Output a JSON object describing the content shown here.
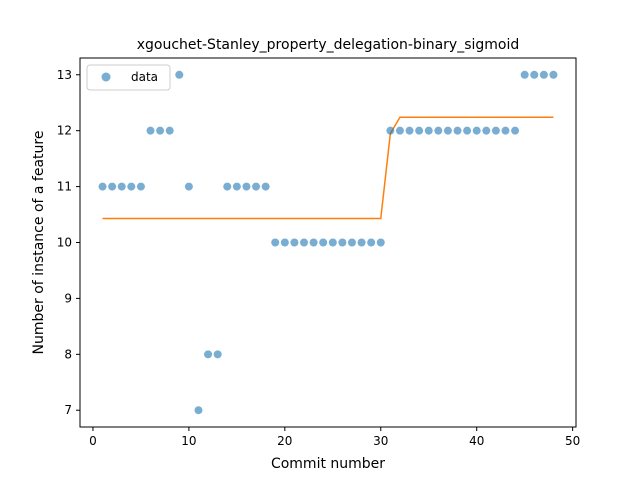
{
  "chart_data": {
    "type": "scatter",
    "title": "xgouchet-Stanley_property_delegation-binary_sigmoid",
    "xlabel": "Commit number",
    "ylabel": "Number of instance of a feature",
    "xlim": [
      -1.35,
      50.35
    ],
    "ylim": [
      6.7,
      13.3
    ],
    "xticks": [
      0,
      10,
      20,
      30,
      40,
      50
    ],
    "yticks": [
      7,
      8,
      9,
      10,
      11,
      12,
      13
    ],
    "grid": false,
    "legend": {
      "placement": "top-left",
      "entries": [
        "data"
      ]
    },
    "colors": {
      "data": "#1f77b4",
      "fit": "#ff7f0e"
    },
    "series": [
      {
        "name": "data",
        "kind": "scatter",
        "x": [
          1,
          2,
          3,
          4,
          5,
          6,
          7,
          8,
          9,
          10,
          11,
          12,
          13,
          14,
          15,
          16,
          17,
          18,
          19,
          20,
          21,
          22,
          23,
          24,
          25,
          26,
          27,
          28,
          29,
          30,
          31,
          32,
          33,
          34,
          35,
          36,
          37,
          38,
          39,
          40,
          41,
          42,
          43,
          44,
          45,
          46,
          47,
          48
        ],
        "y": [
          11,
          11,
          11,
          11,
          11,
          12,
          12,
          12,
          13,
          11,
          7,
          8,
          8,
          11,
          11,
          11,
          11,
          11,
          10,
          10,
          10,
          10,
          10,
          10,
          10,
          10,
          10,
          10,
          10,
          10,
          12,
          12,
          12,
          12,
          12,
          12,
          12,
          12,
          12,
          12,
          12,
          12,
          12,
          12,
          13,
          13,
          13,
          13
        ]
      },
      {
        "kind": "line",
        "x": [
          1,
          30,
          31,
          32,
          48
        ],
        "y": [
          10.43,
          10.43,
          11.95,
          12.24,
          12.24
        ]
      }
    ]
  }
}
